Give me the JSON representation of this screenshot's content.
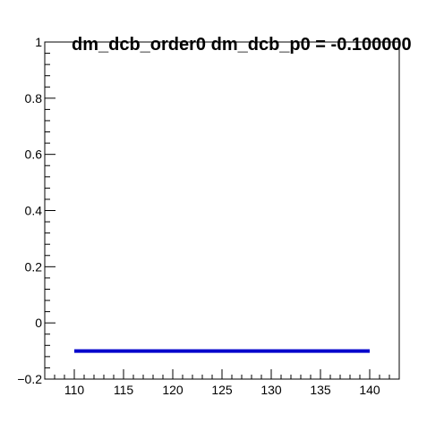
{
  "chart_data": {
    "type": "line",
    "title": "dm_dcb_order0 dm_dcb_p0 = -0.100000",
    "xlabel": "",
    "ylabel": "",
    "xlim": [
      107,
      143
    ],
    "ylim": [
      -0.2,
      1
    ],
    "x_ticks": [
      110,
      115,
      120,
      125,
      130,
      135,
      140
    ],
    "x_tick_labels": [
      "110",
      "115",
      "120",
      "125",
      "130",
      "135",
      "140"
    ],
    "y_ticks": [
      -0.2,
      0,
      0.2,
      0.4,
      0.6,
      0.8,
      1
    ],
    "y_tick_labels": [
      "−0.2",
      "0",
      "0.2",
      "0.4",
      "0.6",
      "0.8",
      "1"
    ],
    "grid": false,
    "series": [
      {
        "color": "#0000cc",
        "x": [
          110,
          140
        ],
        "y": [
          -0.1,
          -0.1
        ]
      }
    ]
  }
}
